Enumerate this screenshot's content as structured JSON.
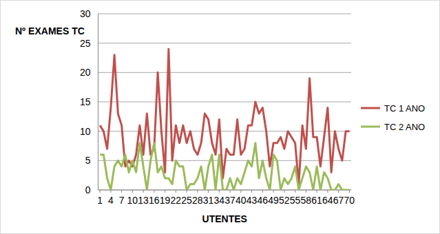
{
  "chart_data": {
    "type": "line",
    "y_label": "Nº EXAMES TC",
    "x_label": "UTENTES",
    "categories": [
      "1",
      null,
      null,
      "4",
      null,
      null,
      "7",
      null,
      null,
      "10",
      null,
      null,
      "13",
      null,
      null,
      "16",
      null,
      null,
      "19",
      null,
      null,
      "22",
      null,
      null,
      "25",
      null,
      null,
      "28",
      null,
      null,
      "31",
      null,
      null,
      "34",
      null,
      null,
      "37",
      null,
      null,
      "40",
      null,
      null,
      "43",
      null,
      null,
      "46",
      null,
      null,
      "49",
      null,
      null,
      "52",
      null,
      null,
      "55",
      null,
      null,
      "58",
      null,
      null,
      "61",
      null,
      null,
      "64",
      null,
      null,
      "67",
      null,
      null,
      "70"
    ],
    "series": [
      {
        "name": "TC 1 ANO",
        "color": "#c0504d",
        "values": [
          11,
          10,
          7,
          14,
          23,
          13,
          11,
          4,
          5,
          4,
          6,
          11,
          6,
          13,
          6,
          7,
          20,
          10,
          3,
          24,
          5,
          11,
          8,
          11,
          8,
          10,
          7,
          6,
          8,
          13,
          12,
          8,
          6,
          12,
          2,
          7,
          6,
          6,
          12,
          6,
          7,
          11,
          11,
          15,
          13,
          14,
          10,
          4,
          8,
          8,
          9,
          7,
          10,
          9,
          8,
          1,
          11,
          7,
          19,
          9,
          9,
          4,
          9,
          14,
          3,
          10,
          7,
          5,
          10,
          10
        ]
      },
      {
        "name": "TC 2 ANO",
        "color": "#9bbb59",
        "values": [
          6,
          6,
          2,
          0,
          4,
          5,
          4,
          6,
          3,
          5,
          3,
          8,
          4,
          0,
          5,
          8,
          3,
          4,
          2,
          2,
          1,
          5,
          4,
          4,
          0,
          1,
          1,
          2,
          4,
          0,
          4,
          6,
          0,
          6,
          0,
          0,
          2,
          0,
          2,
          1,
          3,
          5,
          4,
          8,
          2,
          5,
          2,
          0,
          6,
          5,
          0,
          2,
          1,
          2,
          4,
          0,
          2,
          4,
          3,
          0,
          4,
          0,
          3,
          2,
          0,
          0,
          1,
          0,
          0,
          0
        ]
      }
    ],
    "ylim": [
      0,
      30
    ],
    "yticks": [
      0,
      5,
      10,
      15,
      20,
      25,
      30
    ],
    "grid": true,
    "legend": "right"
  }
}
